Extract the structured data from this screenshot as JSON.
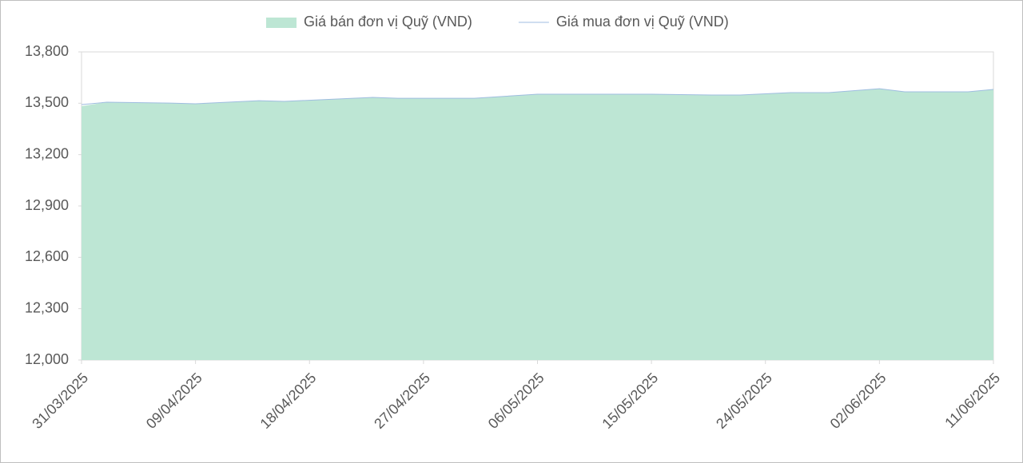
{
  "chart_data": {
    "type": "area-line",
    "x": [
      "31/03/2025",
      "02/04/2025",
      "07/04/2025",
      "09/04/2025",
      "14/04/2025",
      "16/04/2025",
      "23/04/2025",
      "25/04/2025",
      "01/05/2025",
      "06/05/2025",
      "13/05/2025",
      "15/05/2025",
      "20/05/2025",
      "22/05/2025",
      "26/05/2025",
      "29/05/2025",
      "02/06/2025",
      "04/06/2025",
      "09/06/2025",
      "11/06/2025"
    ],
    "series": [
      {
        "name": "Giá bán đơn vị Quỹ (VND)",
        "color": "#bde6d4",
        "kind": "area",
        "values": [
          13483,
          13506,
          13501,
          13497,
          13515,
          13511,
          13534,
          13529,
          13529,
          13553,
          13553,
          13553,
          13548,
          13548,
          13562,
          13562,
          13585,
          13567,
          13567,
          13581
        ]
      },
      {
        "name": "Giá mua đơn vị Quỹ (VND)",
        "color": "#9fbde0",
        "kind": "line",
        "values": [
          13492,
          13506,
          13501,
          13497,
          13515,
          13511,
          13534,
          13529,
          13529,
          13553,
          13553,
          13553,
          13548,
          13548,
          13562,
          13562,
          13585,
          13567,
          13567,
          13581
        ]
      }
    ],
    "xticks": [
      "31/03/2025",
      "09/04/2025",
      "18/04/2025",
      "27/04/2025",
      "06/05/2025",
      "15/05/2025",
      "24/05/2025",
      "02/06/2025",
      "11/06/2025"
    ],
    "ylim": [
      12000,
      13800
    ],
    "yticks": [
      {
        "value": 12000,
        "label": "12,000"
      },
      {
        "value": 12300,
        "label": "12,300"
      },
      {
        "value": 12600,
        "label": "12,600"
      },
      {
        "value": 12900,
        "label": "12,900"
      },
      {
        "value": 13200,
        "label": "13,200"
      },
      {
        "value": 13500,
        "label": "13,500"
      },
      {
        "value": 13800,
        "label": "13,800"
      }
    ],
    "legend": "top"
  }
}
